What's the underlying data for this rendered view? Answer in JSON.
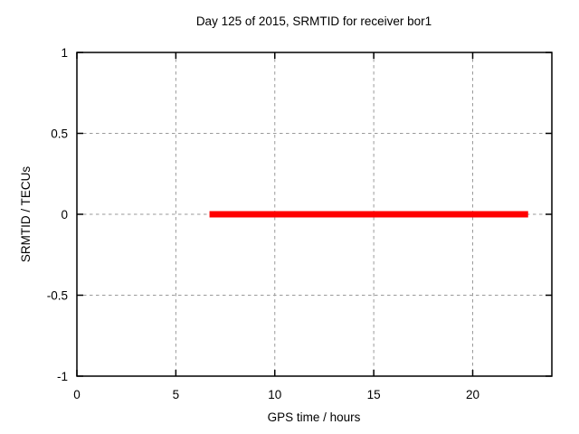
{
  "page": {
    "background_color": "#ffffff",
    "text_color": "#000000"
  },
  "chart_data": {
    "type": "line",
    "title": "Day 125 of 2015, SRMTID for receiver bor1",
    "xlabel": "GPS time / hours",
    "ylabel": "SRMTID / TECUs",
    "xlim": [
      0,
      24
    ],
    "ylim": [
      -1,
      1
    ],
    "xticks": [
      0,
      5,
      10,
      15,
      20
    ],
    "xtick_labels": [
      "0",
      "5",
      "10",
      "15",
      "20"
    ],
    "yticks": [
      -1,
      -0.5,
      0,
      0.5,
      1
    ],
    "ytick_labels": [
      "-1",
      "-0.5",
      "0",
      "0.5",
      "1"
    ],
    "grid": {
      "visible": true,
      "line_style": "dashed",
      "color": "#9a9a9a"
    },
    "border_color": "#000000",
    "legend_position": "none",
    "series": [
      {
        "name": "SRMTID",
        "color": "#ff0000",
        "line_width": 7,
        "x": [
          6.7,
          22.8
        ],
        "y": [
          0,
          0
        ]
      }
    ]
  }
}
